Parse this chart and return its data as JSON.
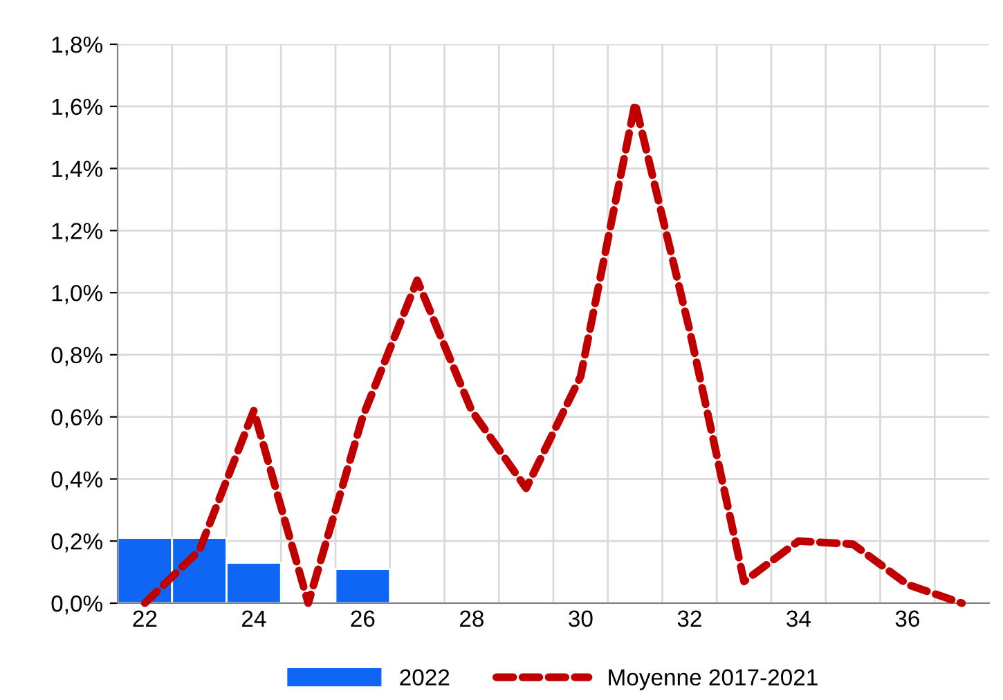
{
  "chart_data": {
    "type": "bar",
    "categories": [
      "22",
      null,
      "24",
      null,
      "26",
      null,
      "28",
      null,
      "30",
      null,
      "32",
      null,
      "34",
      null,
      "36",
      null
    ],
    "series": [
      {
        "name": "2022",
        "color": "#0f66f5",
        "values": [
          0.21,
          0.21,
          0.13,
          null,
          0.11,
          null,
          null,
          null,
          null,
          null,
          null,
          null,
          null,
          null,
          null,
          null
        ]
      },
      {
        "name": "Moyenne 2017-2021",
        "type": "line",
        "color": "#c00000",
        "line_style": "dashed",
        "values": [
          0.0,
          0.17,
          0.62,
          0.0,
          0.6,
          1.04,
          0.62,
          0.37,
          0.73,
          1.61,
          0.88,
          0.07,
          0.2,
          0.19,
          0.06,
          0.0
        ]
      }
    ],
    "ylim": [
      0,
      1.8
    ],
    "yticks": [
      {
        "value": 0,
        "label": "0,0%"
      },
      {
        "value": 0.2,
        "label": "0,2%"
      },
      {
        "value": 0.4,
        "label": "0,4%"
      },
      {
        "value": 0.6,
        "label": "0,6%"
      },
      {
        "value": 0.8,
        "label": "0,8%"
      },
      {
        "value": 1.0,
        "label": "1,0%"
      },
      {
        "value": 1.2,
        "label": "1,2%"
      },
      {
        "value": 1.4,
        "label": "1,4%"
      },
      {
        "value": 1.6,
        "label": "1,6%"
      },
      {
        "value": 1.8,
        "label": "1,8%"
      }
    ],
    "grid": true,
    "legend": "bottom",
    "marker": "none"
  }
}
